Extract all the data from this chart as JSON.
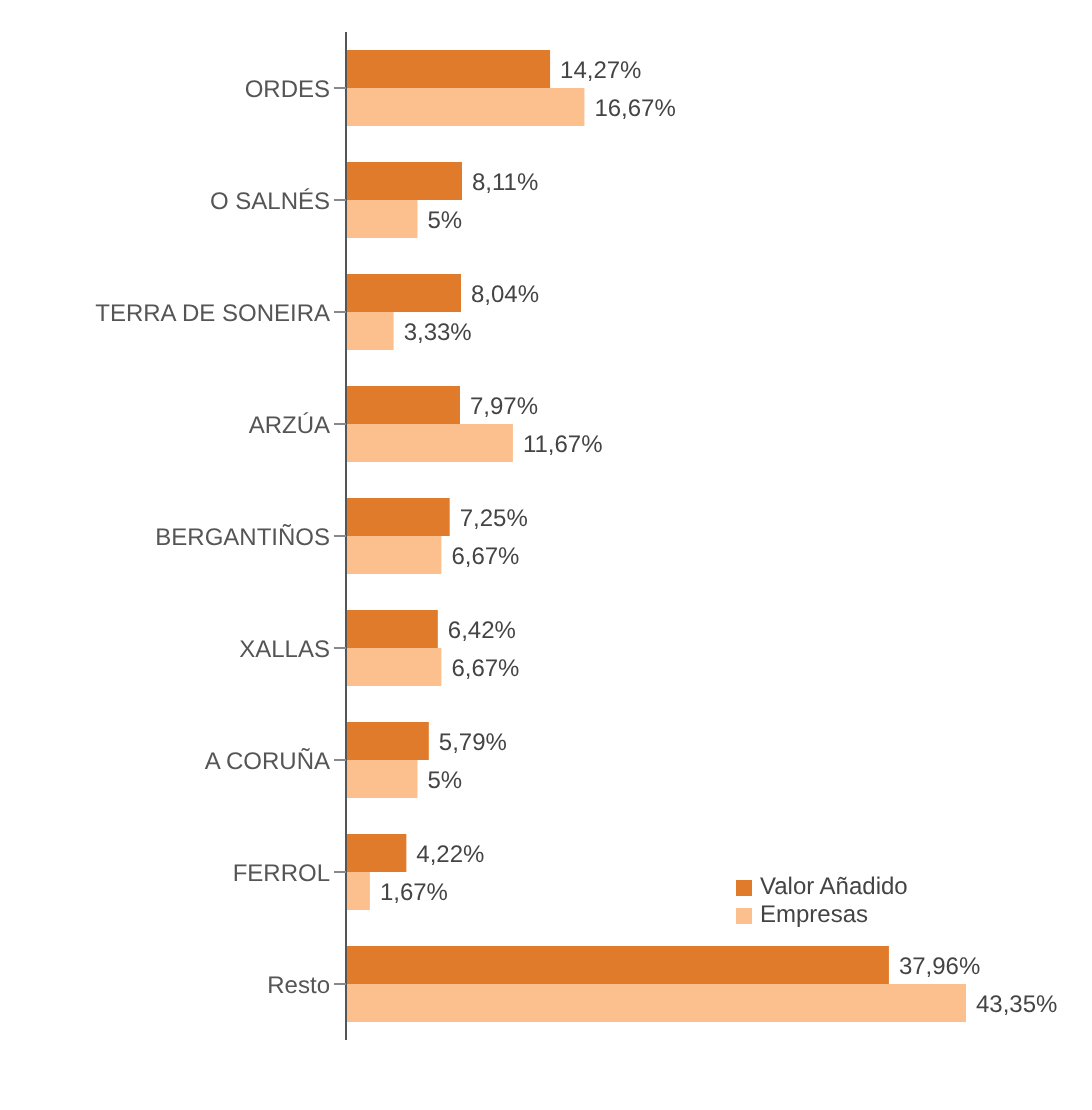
{
  "chart_data": {
    "type": "bar",
    "orientation": "horizontal",
    "categories": [
      "ORDES",
      "O SALNÉS",
      "TERRA DE SONEIRA",
      "ARZÚA",
      "BERGANTIÑOS",
      "XALLAS",
      "A CORUÑA",
      "FERROL",
      "Resto"
    ],
    "series": [
      {
        "name": "Valor Añadido",
        "color": "#e07b2c",
        "values": [
          14.27,
          8.11,
          8.04,
          7.97,
          7.25,
          6.42,
          5.79,
          4.22,
          37.96
        ],
        "value_labels": [
          "14,27%",
          "8,11%",
          "8,04%",
          "7,97%",
          "7,25%",
          "6,42%",
          "5,79%",
          "4,22%",
          "37,96%"
        ]
      },
      {
        "name": "Empresas",
        "color": "#fcbf8e",
        "values": [
          16.67,
          5,
          3.33,
          11.67,
          6.67,
          6.67,
          5,
          1.67,
          43.35
        ],
        "value_labels": [
          "16,67%",
          "5%",
          "3,33%",
          "11,67%",
          "6,67%",
          "6,67%",
          "5%",
          "1,67%",
          "43,35%"
        ]
      }
    ],
    "legend": "bottom right",
    "grid": false
  }
}
